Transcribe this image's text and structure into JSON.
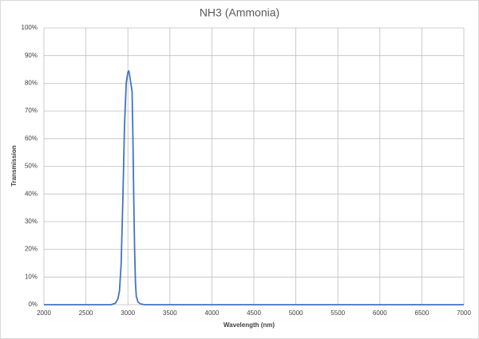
{
  "chart_data": {
    "type": "line",
    "title": "NH3 (Ammonia)",
    "x_label": "Wavelength (nm)",
    "y_label": "Transmission",
    "x": [
      2000,
      2500,
      2800,
      2850,
      2880,
      2900,
      2920,
      2940,
      2960,
      2980,
      3000,
      3010,
      3020,
      3040,
      3050,
      3060,
      3070,
      3080,
      3090,
      3100,
      3120,
      3150,
      3200,
      4000,
      5000,
      6000,
      7000
    ],
    "series": [
      {
        "name": "NH3",
        "color": "#4472c4",
        "values": [
          0,
          0,
          0,
          0.5,
          2,
          5,
          15,
          38,
          65,
          80,
          84,
          84.5,
          83,
          79,
          77,
          60,
          38,
          20,
          8,
          3,
          1,
          0.3,
          0,
          0,
          0,
          0,
          0
        ]
      }
    ],
    "xlim": [
      2000,
      7000
    ],
    "xticks": [
      2000,
      2500,
      3000,
      3500,
      4000,
      4500,
      5000,
      5500,
      6000,
      6500,
      7000
    ],
    "ylim": [
      0,
      100
    ],
    "yticks": [
      {
        "value": 0,
        "label": "0%"
      },
      {
        "value": 10,
        "label": "10%"
      },
      {
        "value": 20,
        "label": "20%"
      },
      {
        "value": 30,
        "label": "30%"
      },
      {
        "value": 40,
        "label": "40%"
      },
      {
        "value": 50,
        "label": "50%"
      },
      {
        "value": 60,
        "label": "60%"
      },
      {
        "value": 70,
        "label": "70%"
      },
      {
        "value": 80,
        "label": "80%"
      },
      {
        "value": 90,
        "label": "90%"
      },
      {
        "value": 100,
        "label": "100%"
      }
    ],
    "grid": true
  }
}
